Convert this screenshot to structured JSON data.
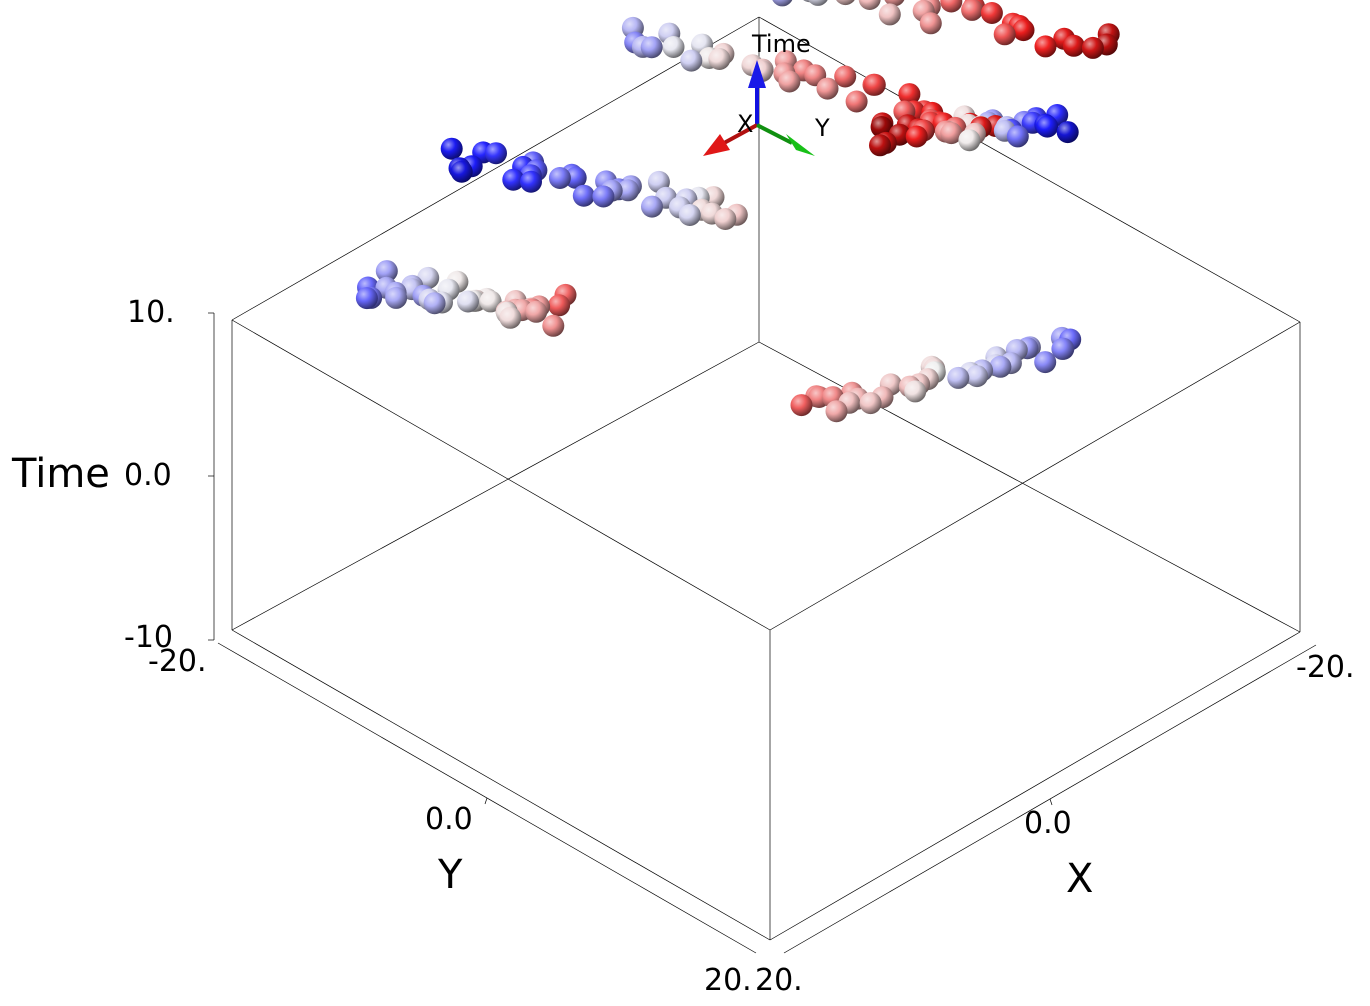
{
  "chart_data": {
    "type": "scatter",
    "subtype": "3d-scatter-spheres",
    "title": "",
    "x_axis": {
      "label": "X",
      "ticks": [
        "-20.",
        "0.0",
        "20."
      ],
      "range": [
        -20,
        20
      ]
    },
    "y_axis": {
      "label": "Y",
      "ticks": [
        "-20.",
        "0.0",
        "20."
      ],
      "range": [
        -20,
        20
      ]
    },
    "time_axis": {
      "label": "Time",
      "ticks": [
        "-10",
        "0.0",
        "10."
      ],
      "range": [
        -10,
        10
      ]
    },
    "orientation_triad": {
      "z_label": "Time",
      "x_label": "X",
      "y_label": "Y"
    },
    "color_scale": {
      "encodes": "Time",
      "low": "#00006b",
      "mid": "#f0f0f0",
      "high": "#7a0000"
    },
    "grid": false,
    "legend": "none",
    "point_sets": [
      {
        "name": "",
        "x": -14,
        "y": [
          -18,
          12
        ],
        "t": [
          -3,
          7
        ]
      },
      {
        "name": "",
        "x": -5,
        "y": [
          -16,
          12
        ],
        "t": [
          -2,
          6
        ]
      },
      {
        "name": "",
        "x": 5,
        "y": [
          -18,
          3
        ],
        "t": [
          -6,
          1
        ]
      },
      {
        "name": "",
        "x": 20,
        "y": [
          -10,
          5
        ],
        "t": [
          -3,
          3
        ]
      },
      {
        "name": "",
        "x": [
          -3,
          17
        ],
        "y": 20,
        "t": [
          -3,
          3
        ]
      },
      {
        "name": "",
        "x": [
          -20,
          2
        ],
        "y": [
          2,
          10
        ],
        "t": [
          -6,
          8
        ]
      }
    ]
  }
}
